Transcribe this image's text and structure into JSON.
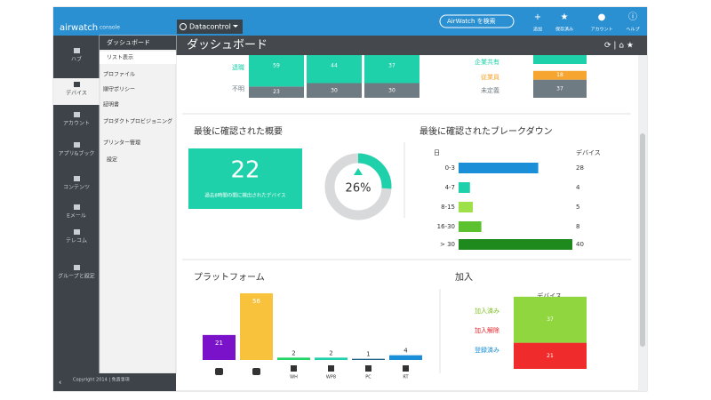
{
  "header": {
    "logo": "airwatch",
    "product": "console",
    "organization": "Datacontrol",
    "search": "AirWatch を検索",
    "actions": [
      "追加",
      "保存済み",
      "アカウント",
      "ヘルプ"
    ]
  },
  "nav": [
    "ハブ",
    "デバイス",
    "アカウント",
    "アプリ&ブック",
    "コンテンツ",
    "Eメール",
    "テレコム",
    "グループと設定"
  ],
  "subnav": {
    "title": "ダッシュボード",
    "items": [
      "リスト表示",
      "プロファイル",
      "順守ポリシー",
      "証明書",
      "プロダクトプロビジョニング",
      "プリンター管理",
      "設定"
    ]
  },
  "footer": "Copyright 2014 | 免責事項",
  "page_title": "ダッシュボード",
  "ownership_left": {
    "series": [
      {
        "name": "退職",
        "color": "#1fd1aa",
        "values": [
          59,
          44,
          37
        ]
      },
      {
        "name": "不明",
        "color": "#6f7b83",
        "values": [
          23,
          30,
          30
        ]
      }
    ]
  },
  "ownership_right": {
    "series": [
      {
        "name": "企業共有",
        "color": "#1fd1aa"
      },
      {
        "name": "従業員",
        "color": "#f7a531",
        "values": [
          18
        ]
      },
      {
        "name": "未定義",
        "color": "#6f7b83",
        "values": [
          37
        ]
      }
    ]
  },
  "summary": {
    "title": "最後に確認された概要",
    "count": 22,
    "caption": "過去8時間の間に検出されたデバイス",
    "percent": {
      "value": 26,
      "label": "26%"
    },
    "color": "#1fd1aa"
  },
  "breakdown": {
    "title": "最後に確認されたブレークダウン",
    "category_header": "日",
    "value_header": "デバイス",
    "categories": [
      "0-3",
      "4-7",
      "8-15",
      "16-30",
      "> 30"
    ],
    "values": [
      28,
      4,
      5,
      8,
      40
    ],
    "colors": [
      "#1a8fd8",
      "#1fd1aa",
      "#9ee04a",
      "#5cc12e",
      "#1e8a1e"
    ]
  },
  "platform": {
    "title": "プラットフォーム",
    "categories": [
      null,
      null,
      "WH",
      "WP8",
      "PC",
      "RT"
    ],
    "values": [
      21,
      56,
      2,
      2,
      1,
      4
    ],
    "colors": [
      "#7a12c9",
      "#f9c23c",
      "#22d463",
      "#1fd1aa",
      "#1c5f86",
      "#1a8fd8"
    ]
  },
  "enrollment": {
    "title": "加入",
    "value_header": "デバイス",
    "labels": [
      {
        "text": "加入済み",
        "color": "#7cc21f"
      },
      {
        "text": "加入解除",
        "color": "#e8262b"
      },
      {
        "text": "登録済み",
        "color": "#1a8fd8"
      }
    ],
    "segments": [
      {
        "value": 37,
        "color": "#8fd63f"
      },
      {
        "value": 21,
        "color": "#ef2b2b"
      }
    ]
  }
}
